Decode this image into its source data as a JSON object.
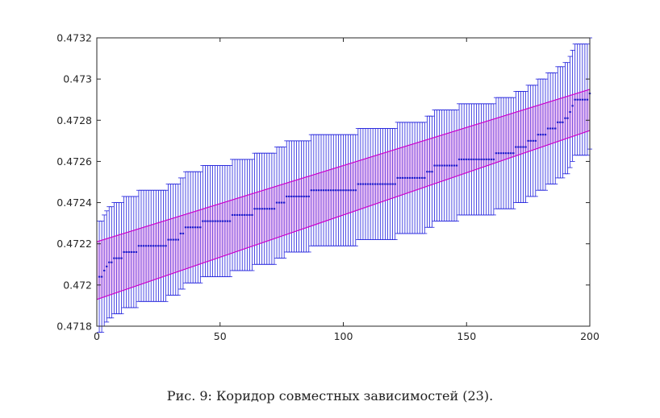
{
  "caption": "Рис. 9:  Коридор совместных зависимостей (23).",
  "chart_data": {
    "type": "scatter",
    "title": "",
    "xlabel": "",
    "ylabel": "",
    "xlim": [
      0,
      200
    ],
    "ylim": [
      0.4718,
      0.4732
    ],
    "x_ticks": [
      "0",
      "50",
      "100",
      "150",
      "200"
    ],
    "y_ticks": [
      "0.4718",
      "0.472",
      "0.4722",
      "0.4724",
      "0.4726",
      "0.4728",
      "0.473",
      "0.4732"
    ],
    "grid": false,
    "legend": "none",
    "colors": {
      "interval": "#2222dd",
      "point": "#1a1acc",
      "corridor": "#cc00cc",
      "corridor_fill": "#cc55dd"
    },
    "corridor": {
      "lower": {
        "x": [
          0,
          200
        ],
        "y": [
          0.47193,
          0.47275
        ]
      },
      "upper": {
        "x": [
          0,
          200
        ],
        "y": [
          0.47221,
          0.47295
        ]
      }
    },
    "series": [
      {
        "x": [
          1,
          2,
          3,
          4,
          5,
          6,
          7,
          8,
          9,
          10,
          11,
          12,
          13,
          14,
          15,
          16,
          17,
          18,
          19,
          20,
          21,
          22,
          23,
          24,
          25,
          26,
          27,
          28,
          29,
          30,
          31,
          32,
          33,
          34,
          35,
          36,
          37,
          38,
          39,
          40,
          41,
          42,
          43,
          44,
          45,
          46,
          47,
          48,
          49,
          50,
          51,
          52,
          53,
          54,
          55,
          56,
          57,
          58,
          59,
          60,
          61,
          62,
          63,
          64,
          65,
          66,
          67,
          68,
          69,
          70,
          71,
          72,
          73,
          74,
          75,
          76,
          77,
          78,
          79,
          80,
          81,
          82,
          83,
          84,
          85,
          86,
          87,
          88,
          89,
          90,
          91,
          92,
          93,
          94,
          95,
          96,
          97,
          98,
          99,
          100,
          101,
          102,
          103,
          104,
          105,
          106,
          107,
          108,
          109,
          110,
          111,
          112,
          113,
          114,
          115,
          116,
          117,
          118,
          119,
          120,
          121,
          122,
          123,
          124,
          125,
          126,
          127,
          128,
          129,
          130,
          131,
          132,
          133,
          134,
          135,
          136,
          137,
          138,
          139,
          140,
          141,
          142,
          143,
          144,
          145,
          146,
          147,
          148,
          149,
          150,
          151,
          152,
          153,
          154,
          155,
          156,
          157,
          158,
          159,
          160,
          161,
          162,
          163,
          164,
          165,
          166,
          167,
          168,
          169,
          170,
          171,
          172,
          173,
          174,
          175,
          176,
          177,
          178,
          179,
          180,
          181,
          182,
          183,
          184,
          185,
          186,
          187,
          188,
          189,
          190,
          191,
          192,
          193,
          194,
          195,
          196,
          197,
          198,
          199,
          200
        ],
        "y": [
          0.47204,
          0.47204,
          0.47207,
          0.47209,
          0.47211,
          0.47211,
          0.47213,
          0.47213,
          0.47213,
          0.47213,
          0.47216,
          0.47216,
          0.47216,
          0.47216,
          0.47216,
          0.47216,
          0.47219,
          0.47219,
          0.47219,
          0.47219,
          0.47219,
          0.47219,
          0.47219,
          0.47219,
          0.47219,
          0.47219,
          0.47219,
          0.47219,
          0.47222,
          0.47222,
          0.47222,
          0.47222,
          0.47222,
          0.47225,
          0.47225,
          0.47228,
          0.47228,
          0.47228,
          0.47228,
          0.47228,
          0.47228,
          0.47228,
          0.47231,
          0.47231,
          0.47231,
          0.47231,
          0.47231,
          0.47231,
          0.47231,
          0.47231,
          0.47231,
          0.47231,
          0.47231,
          0.47231,
          0.47234,
          0.47234,
          0.47234,
          0.47234,
          0.47234,
          0.47234,
          0.47234,
          0.47234,
          0.47234,
          0.47237,
          0.47237,
          0.47237,
          0.47237,
          0.47237,
          0.47237,
          0.47237,
          0.47237,
          0.47237,
          0.4724,
          0.4724,
          0.4724,
          0.4724,
          0.47243,
          0.47243,
          0.47243,
          0.47243,
          0.47243,
          0.47243,
          0.47243,
          0.47243,
          0.47243,
          0.47243,
          0.47246,
          0.47246,
          0.47246,
          0.47246,
          0.47246,
          0.47246,
          0.47246,
          0.47246,
          0.47246,
          0.47246,
          0.47246,
          0.47246,
          0.47246,
          0.47246,
          0.47246,
          0.47246,
          0.47246,
          0.47246,
          0.47246,
          0.47249,
          0.47249,
          0.47249,
          0.47249,
          0.47249,
          0.47249,
          0.47249,
          0.47249,
          0.47249,
          0.47249,
          0.47249,
          0.47249,
          0.47249,
          0.47249,
          0.47249,
          0.47249,
          0.47252,
          0.47252,
          0.47252,
          0.47252,
          0.47252,
          0.47252,
          0.47252,
          0.47252,
          0.47252,
          0.47252,
          0.47252,
          0.47252,
          0.47255,
          0.47255,
          0.47255,
          0.47258,
          0.47258,
          0.47258,
          0.47258,
          0.47258,
          0.47258,
          0.47258,
          0.47258,
          0.47258,
          0.47258,
          0.47261,
          0.47261,
          0.47261,
          0.47261,
          0.47261,
          0.47261,
          0.47261,
          0.47261,
          0.47261,
          0.47261,
          0.47261,
          0.47261,
          0.47261,
          0.47261,
          0.47261,
          0.47264,
          0.47264,
          0.47264,
          0.47264,
          0.47264,
          0.47264,
          0.47264,
          0.47264,
          0.47267,
          0.47267,
          0.47267,
          0.47267,
          0.47267,
          0.4727,
          0.4727,
          0.4727,
          0.4727,
          0.47273,
          0.47273,
          0.47273,
          0.47273,
          0.47276,
          0.47276,
          0.47276,
          0.47276,
          0.47279,
          0.47279,
          0.47279,
          0.47281,
          0.47281,
          0.47284,
          0.47287,
          0.4729,
          0.4729,
          0.4729,
          0.4729,
          0.4729,
          0.4729,
          0.47293
        ],
        "radius": 0.00027
      }
    ]
  }
}
